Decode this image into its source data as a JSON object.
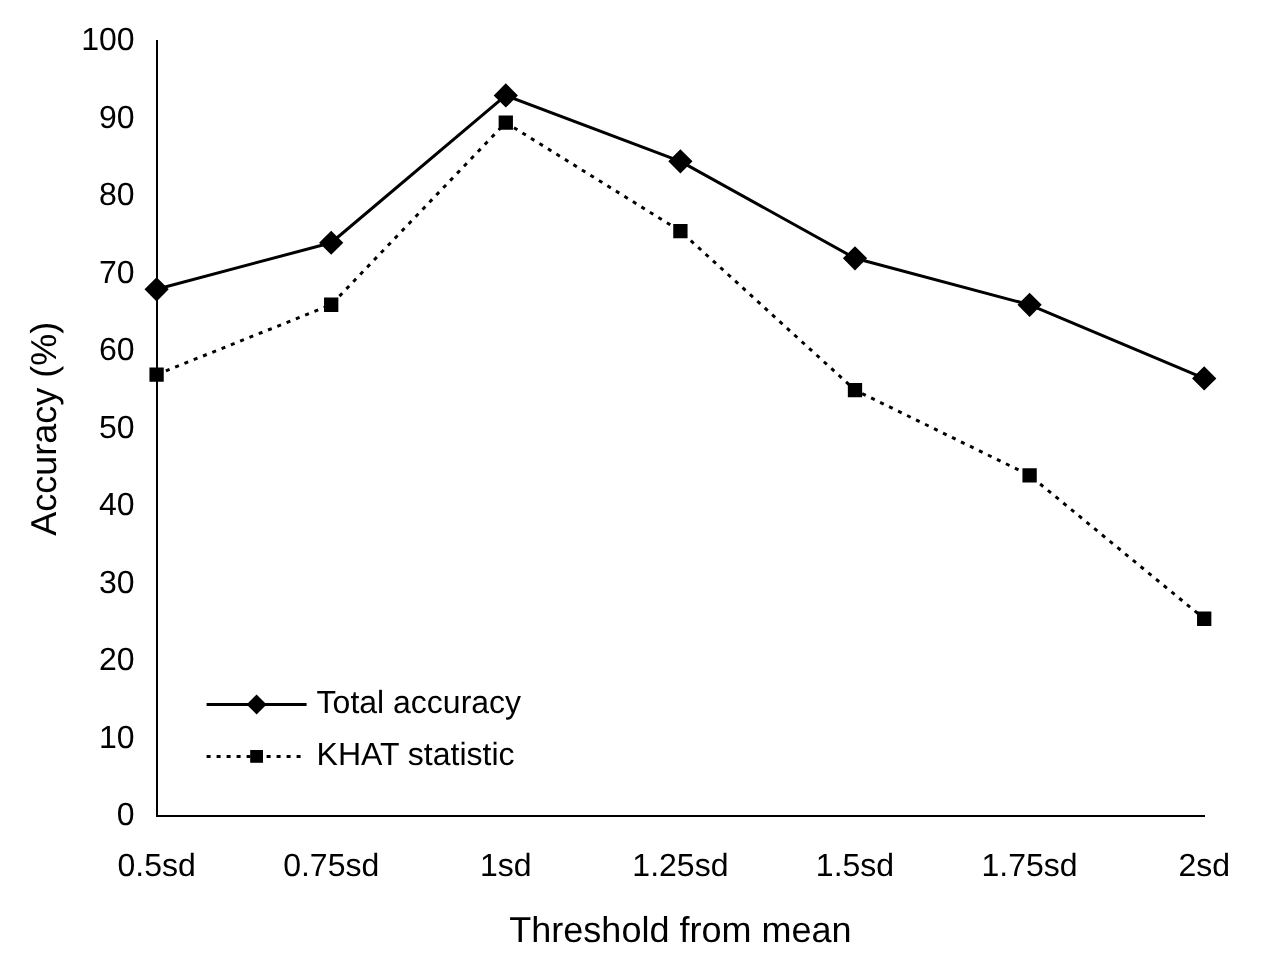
{
  "chart_data": {
    "type": "line",
    "xlabel": "Threshold from mean",
    "ylabel": "Accuracy (%)",
    "categories": [
      "0.5sd",
      "0.75sd",
      "1sd",
      "1.25sd",
      "1.5sd",
      "1.75sd",
      "2sd"
    ],
    "series": [
      {
        "name": "Total accuracy",
        "color": "#000000",
        "marker": "diamond",
        "line_style": "solid",
        "values": [
          68,
          74,
          93,
          84.5,
          72,
          66,
          56.5
        ]
      },
      {
        "name": "KHAT statistic",
        "color": "#000000",
        "marker": "square",
        "line_style": "dotted",
        "values": [
          57,
          66,
          89.5,
          75.5,
          55,
          44,
          25.5
        ]
      }
    ],
    "ylim": [
      0,
      100
    ],
    "yticks": [
      0,
      10,
      20,
      30,
      40,
      50,
      60,
      70,
      80,
      90,
      100
    ],
    "grid": false,
    "legend": "bottom left"
  }
}
